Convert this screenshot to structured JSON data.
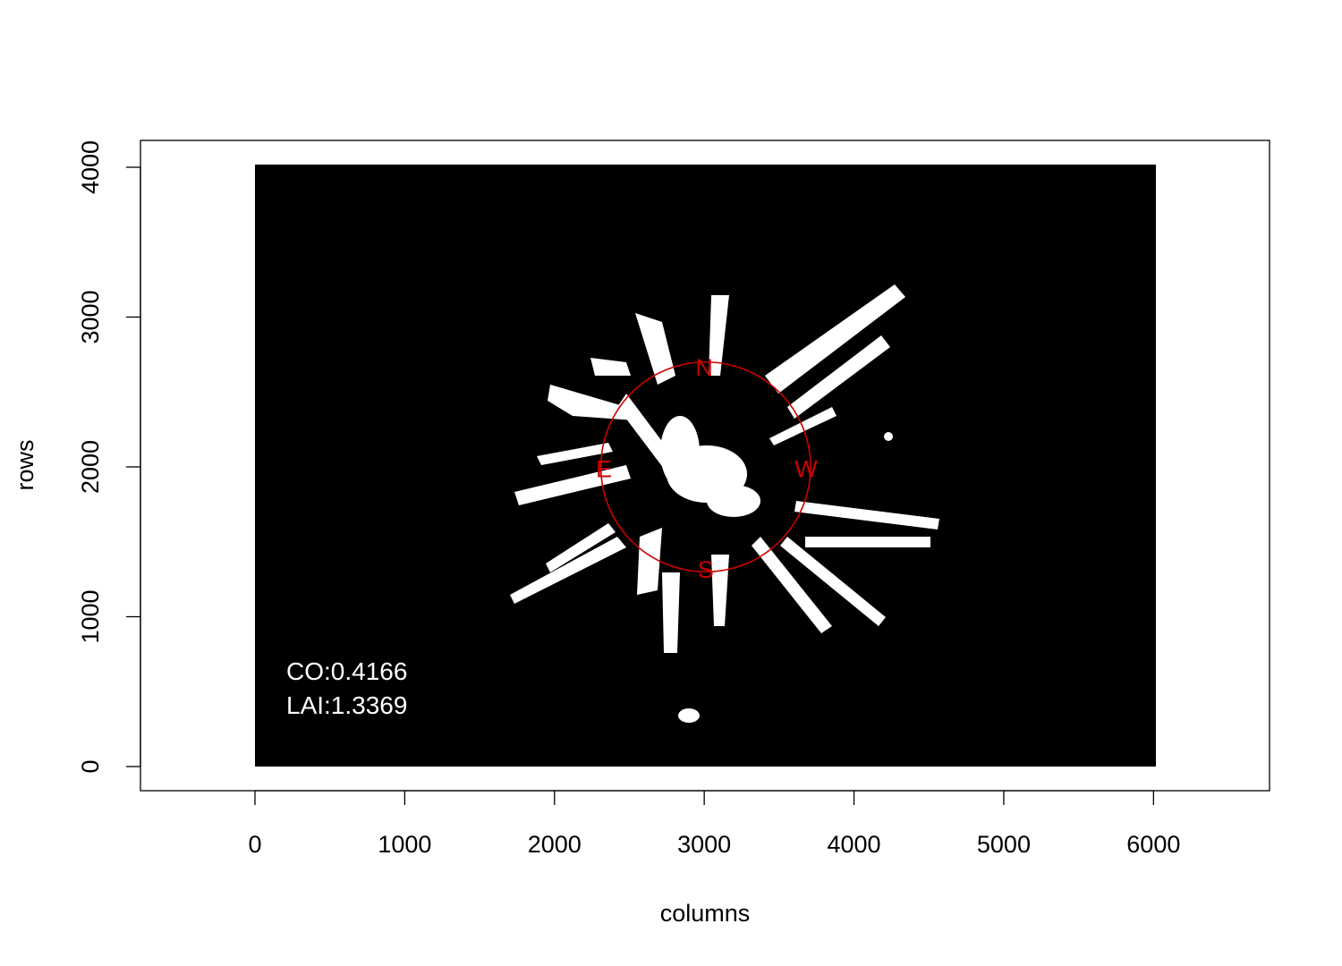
{
  "chart_data": {
    "type": "heatmap",
    "xlabel": "columns",
    "ylabel": "rows",
    "xlim": [
      -770,
      6780
    ],
    "ylim": [
      -160,
      4180
    ],
    "x_ticks": [
      "0",
      "1000",
      "2000",
      "3000",
      "4000",
      "5000",
      "6000"
    ],
    "y_ticks": [
      "0",
      "1000",
      "2000",
      "3000",
      "4000"
    ],
    "x_tick_values": [
      0,
      1000,
      2000,
      3000,
      4000,
      5000,
      6000
    ],
    "y_tick_values": [
      0,
      1000,
      2000,
      3000,
      4000
    ],
    "image_extent": {
      "x": [
        0,
        6016
      ],
      "y": [
        0,
        4016
      ]
    },
    "image_description_colors": {
      "background": "#000000",
      "canopy_gaps": "#ffffff"
    },
    "compass": {
      "center": [
        3010,
        2000
      ],
      "radius": 700,
      "color": "#cc0000",
      "labels": [
        {
          "text": "N",
          "x": 3000,
          "y": 2670
        },
        {
          "text": "E",
          "x": 2330,
          "y": 1990
        },
        {
          "text": "W",
          "x": 3680,
          "y": 1990
        },
        {
          "text": "S",
          "x": 3010,
          "y": 1320
        }
      ]
    },
    "annotations": [
      "CO:0.4166",
      "LAI:1.3369"
    ],
    "grid": false
  }
}
